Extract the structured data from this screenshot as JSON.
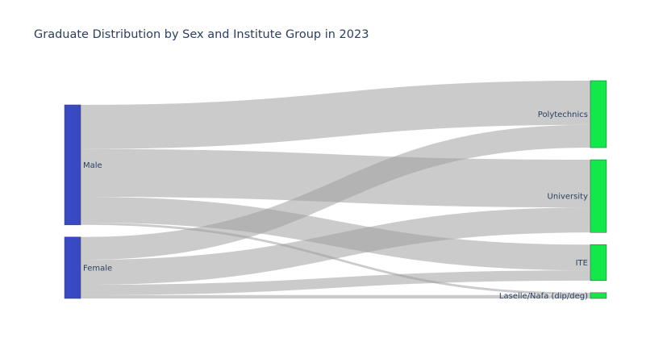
{
  "chart_data": {
    "type": "sankey",
    "title": "Graduate Distribution by Sex and Institute Group in 2023",
    "nodes": [
      {
        "id": "male",
        "label": "Male",
        "side": "source",
        "color": "#3949c4"
      },
      {
        "id": "female",
        "label": "Female",
        "side": "source",
        "color": "#3949c4"
      },
      {
        "id": "poly",
        "label": "Polytechnics",
        "side": "target",
        "color": "#12e849"
      },
      {
        "id": "univ",
        "label": "University",
        "side": "target",
        "color": "#12e849"
      },
      {
        "id": "ite",
        "label": "ITE",
        "side": "target",
        "color": "#12e849"
      },
      {
        "id": "laselle",
        "label": "Laselle/Nafa (dip/deg)",
        "side": "target",
        "color": "#12e849"
      }
    ],
    "links": [
      {
        "source": "male",
        "target": "poly",
        "value": 8400
      },
      {
        "source": "male",
        "target": "univ",
        "value": 9100
      },
      {
        "source": "male",
        "target": "ite",
        "value": 4900
      },
      {
        "source": "male",
        "target": "laselle",
        "value": 450
      },
      {
        "source": "female",
        "target": "poly",
        "value": 4350
      },
      {
        "source": "female",
        "target": "univ",
        "value": 4750
      },
      {
        "source": "female",
        "target": "ite",
        "value": 1950
      },
      {
        "source": "female",
        "target": "laselle",
        "value": 650
      }
    ],
    "link_color": "#a0a0a0"
  }
}
